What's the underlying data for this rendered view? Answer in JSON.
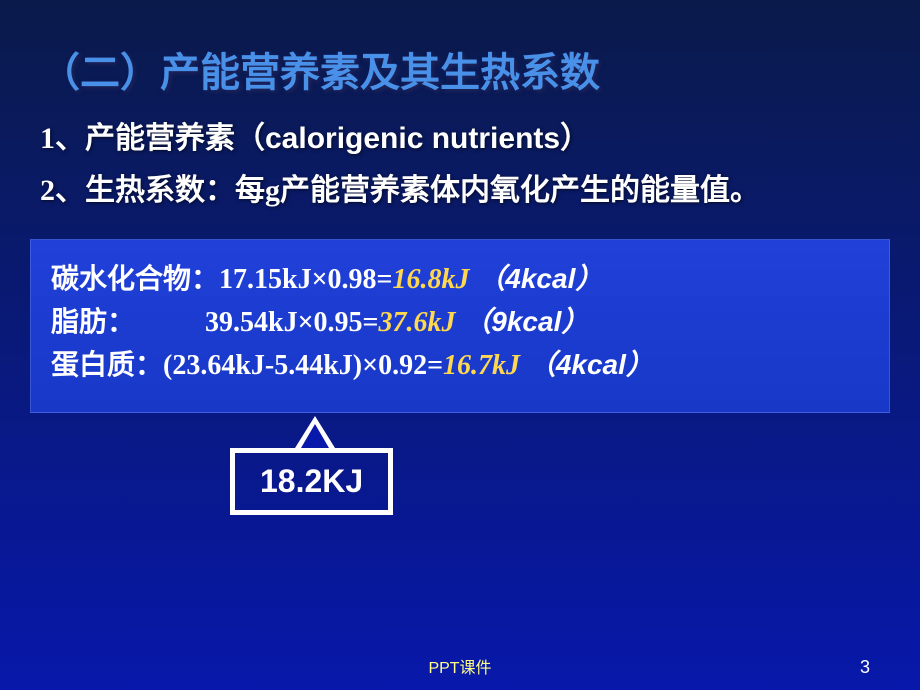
{
  "title": "（二）产能营养素及其生热系数",
  "sub1": {
    "prefix": "1、产能营养素（",
    "english": "calorigenic nutrients",
    "suffix": "）"
  },
  "sub2": "2、生热系数：每g产能营养素体内氧化产生的能量值。",
  "calculations": {
    "carb": {
      "label": "碳水化合物：",
      "formula": "17.15kJ×0.98=",
      "result": "16.8kJ",
      "kcal": " （4kcal）"
    },
    "fat": {
      "label": "脂肪：",
      "spacing": "          ",
      "formula": "39.54kJ×0.95=",
      "result": "37.6kJ",
      "kcal": " （9kcal）"
    },
    "protein": {
      "label": "蛋白质：",
      "formula": "(23.64kJ-5.44kJ)×0.92=",
      "result": "16.7kJ",
      "kcal": " （4kcal）"
    }
  },
  "callout": "18.2KJ",
  "footer": "PPT课件",
  "pageNumber": "3",
  "colors": {
    "title_color": "#4890e8",
    "text_color": "#ffffff",
    "result_color": "#ffd850",
    "footer_color": "#ffff88",
    "bg_gradient_start": "#0a1a4a",
    "bg_gradient_end": "#0818aa",
    "box_bg": "#2040d8"
  },
  "typography": {
    "title_size": 40,
    "subtitle_size": 30,
    "calc_size": 28,
    "callout_size": 32
  }
}
